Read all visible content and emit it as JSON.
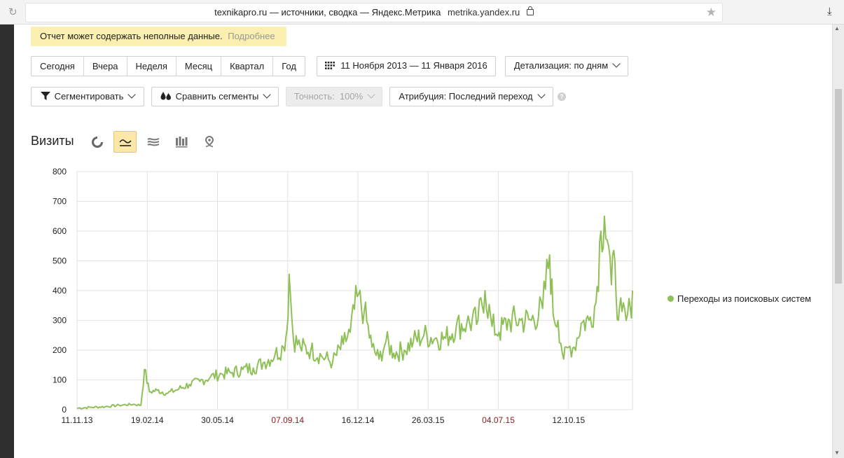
{
  "browser": {
    "title": "texnikapro.ru — источники, сводка — Яндекс.Метрика",
    "host": "metrika.yandex.ru"
  },
  "notice": {
    "text": "Отчет может содержать неполные данные.",
    "more_link": "Подробнее"
  },
  "period_buttons": [
    "Сегодня",
    "Вчера",
    "Неделя",
    "Месяц",
    "Квартал",
    "Год"
  ],
  "date_range": "11 Ноября 2013 — 11 Января 2016",
  "detail": "Детализация: по дням",
  "segment_button": "Сегментировать",
  "compare_button": "Сравнить сегменты",
  "accuracy": "Точность:  100%",
  "attribution": "Атрибуция: Последний переход",
  "chart_title": "Визиты",
  "colors": {
    "series": "#8ec057",
    "active_toggle": "#fbe7a6",
    "notice_bg": "#faeeb0",
    "weekend_tick": "#8b1a1a"
  },
  "chart_data": {
    "type": "line",
    "ylim": [
      0,
      800
    ],
    "y_ticks": [
      "0",
      "100",
      "200",
      "300",
      "400",
      "500",
      "600",
      "700",
      "800"
    ],
    "x_ticks": [
      {
        "label": "11.11.13",
        "weekend": false
      },
      {
        "label": "19.02.14",
        "weekend": false
      },
      {
        "label": "30.05.14",
        "weekend": false
      },
      {
        "label": "07.09.14",
        "weekend": true
      },
      {
        "label": "16.12.14",
        "weekend": false
      },
      {
        "label": "26.03.15",
        "weekend": false
      },
      {
        "label": "04.07.15",
        "weekend": true
      },
      {
        "label": "12.10.15",
        "weekend": false
      }
    ],
    "grid": true,
    "legend_position": "right",
    "series": [
      {
        "name": "Переходы из поисковых систем",
        "x": [
          "2013-11-11",
          "2013-12-01",
          "2013-12-21",
          "2014-01-10",
          "2014-01-30",
          "2014-02-10",
          "2014-02-15",
          "2014-02-22",
          "2014-03-05",
          "2014-03-20",
          "2014-04-05",
          "2014-04-20",
          "2014-05-05",
          "2014-05-20",
          "2014-06-05",
          "2014-06-20",
          "2014-07-05",
          "2014-07-20",
          "2014-08-05",
          "2014-08-20",
          "2014-09-01",
          "2014-09-06",
          "2014-09-09",
          "2014-09-15",
          "2014-09-25",
          "2014-10-10",
          "2014-10-25",
          "2014-11-10",
          "2014-11-25",
          "2014-12-05",
          "2014-12-15",
          "2014-12-25",
          "2015-01-05",
          "2015-01-15",
          "2015-01-25",
          "2015-02-05",
          "2015-02-20",
          "2015-03-05",
          "2015-03-20",
          "2015-04-05",
          "2015-04-20",
          "2015-05-05",
          "2015-05-20",
          "2015-06-05",
          "2015-06-15",
          "2015-06-25",
          "2015-07-05",
          "2015-07-20",
          "2015-08-05",
          "2015-08-20",
          "2015-09-05",
          "2015-09-15",
          "2015-09-20",
          "2015-09-27",
          "2015-10-05",
          "2015-10-12",
          "2015-10-20",
          "2015-10-30",
          "2015-11-10",
          "2015-11-20",
          "2015-11-27",
          "2015-12-02",
          "2015-12-08",
          "2015-12-12",
          "2015-12-17",
          "2015-12-22",
          "2015-12-27",
          "2016-01-02",
          "2016-01-08",
          "2016-01-11"
        ],
        "values": [
          5,
          8,
          10,
          15,
          18,
          15,
          135,
          60,
          65,
          55,
          70,
          85,
          95,
          110,
          120,
          125,
          135,
          140,
          160,
          185,
          210,
          270,
          455,
          240,
          210,
          200,
          180,
          160,
          220,
          260,
          380,
          330,
          210,
          170,
          230,
          190,
          200,
          230,
          250,
          240,
          240,
          280,
          290,
          300,
          400,
          280,
          260,
          300,
          300,
          300,
          340,
          520,
          320,
          300,
          170,
          210,
          210,
          290,
          300,
          360,
          600,
          650,
          550,
          420,
          500,
          300,
          330,
          300,
          340,
          400
        ]
      }
    ]
  },
  "legend_label": "Переходы из поисковых систем"
}
